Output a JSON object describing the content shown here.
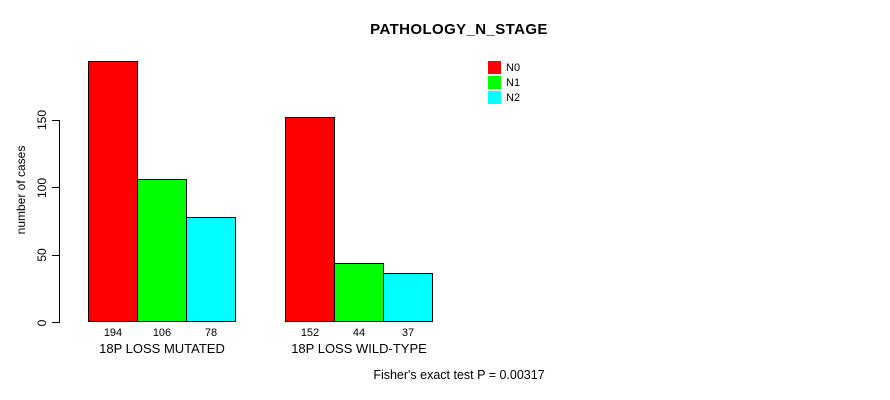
{
  "figure": {
    "background": "#ffffff",
    "text_color": "#000000"
  },
  "chart_data": {
    "type": "bar",
    "title": "PATHOLOGY_N_STAGE",
    "xlabel": "",
    "ylabel": "number of cases",
    "ylim": [
      0,
      150
    ],
    "y_ticks": [
      0,
      50,
      100,
      150
    ],
    "grid": false,
    "categories": [
      "18P LOSS MUTATED",
      "18P LOSS WILD-TYPE"
    ],
    "series": [
      {
        "name": "N0",
        "color": "#ff0000",
        "values": [
          194,
          152
        ]
      },
      {
        "name": "N1",
        "color": "#00ff00",
        "values": [
          106,
          44
        ]
      },
      {
        "name": "N2",
        "color": "#00ffff",
        "values": [
          78,
          37
        ]
      }
    ],
    "bar_value_labels": [
      [
        194,
        106,
        78
      ],
      [
        152,
        44,
        37
      ]
    ],
    "legend": {
      "position": "top-right-inside",
      "entries": [
        "N0",
        "N1",
        "N2"
      ]
    },
    "annotation": "Fisher's exact test P = 0.00317"
  }
}
